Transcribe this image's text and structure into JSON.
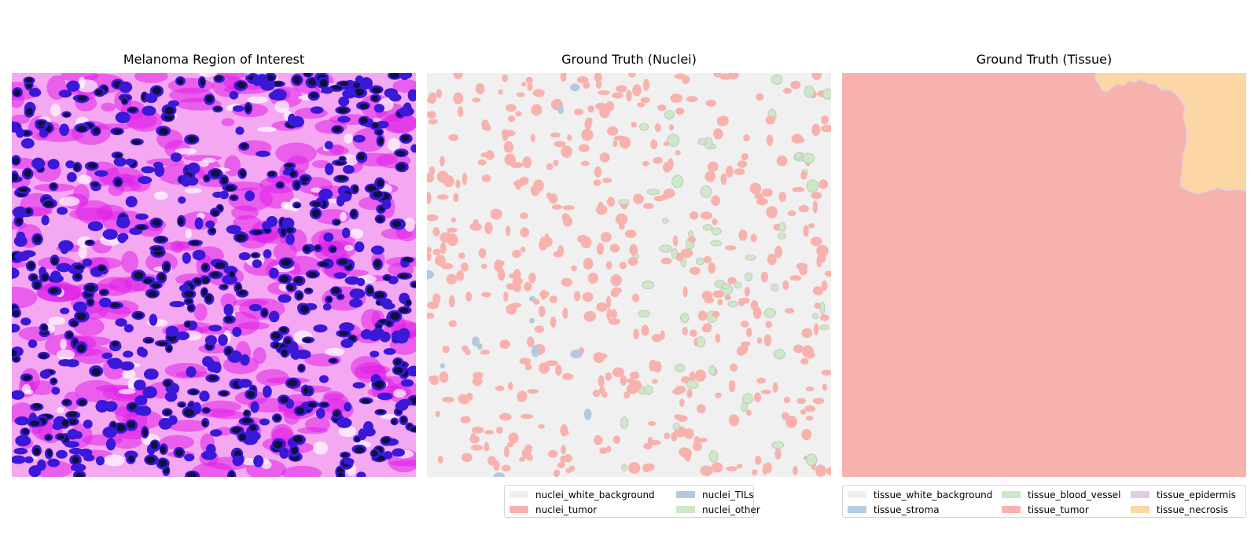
{
  "panels": [
    {
      "title": "Melanoma Region of Interest"
    },
    {
      "title": "Ground Truth (Nuclei)"
    },
    {
      "title": "Ground Truth (Tissue)"
    }
  ],
  "legends": {
    "nuclei": [
      {
        "label": "nuclei_white_background",
        "color": "#f0f0f0"
      },
      {
        "label": "nuclei_TILs",
        "color": "#b3c9df"
      },
      {
        "label": "nuclei_tumor",
        "color": "#f8b2ad"
      },
      {
        "label": "nuclei_other",
        "color": "#cce8c6"
      }
    ],
    "tissue": [
      {
        "label": "tissue_white_background",
        "color": "#f0f0f0"
      },
      {
        "label": "tissue_blood_vessel",
        "color": "#cce8c6"
      },
      {
        "label": "tissue_epidermis",
        "color": "#e0cde2"
      },
      {
        "label": "tissue_stroma",
        "color": "#b3cde2"
      },
      {
        "label": "tissue_tumor",
        "color": "#f8b2ad"
      },
      {
        "label": "tissue_necrosis",
        "color": "#fcd6a4"
      }
    ]
  },
  "colors": {
    "he_background": "#f5a8f2",
    "he_stroma": "#e020e8",
    "he_nucleus_blue": "#3a18d8",
    "he_nucleus_dark": "#101040"
  }
}
